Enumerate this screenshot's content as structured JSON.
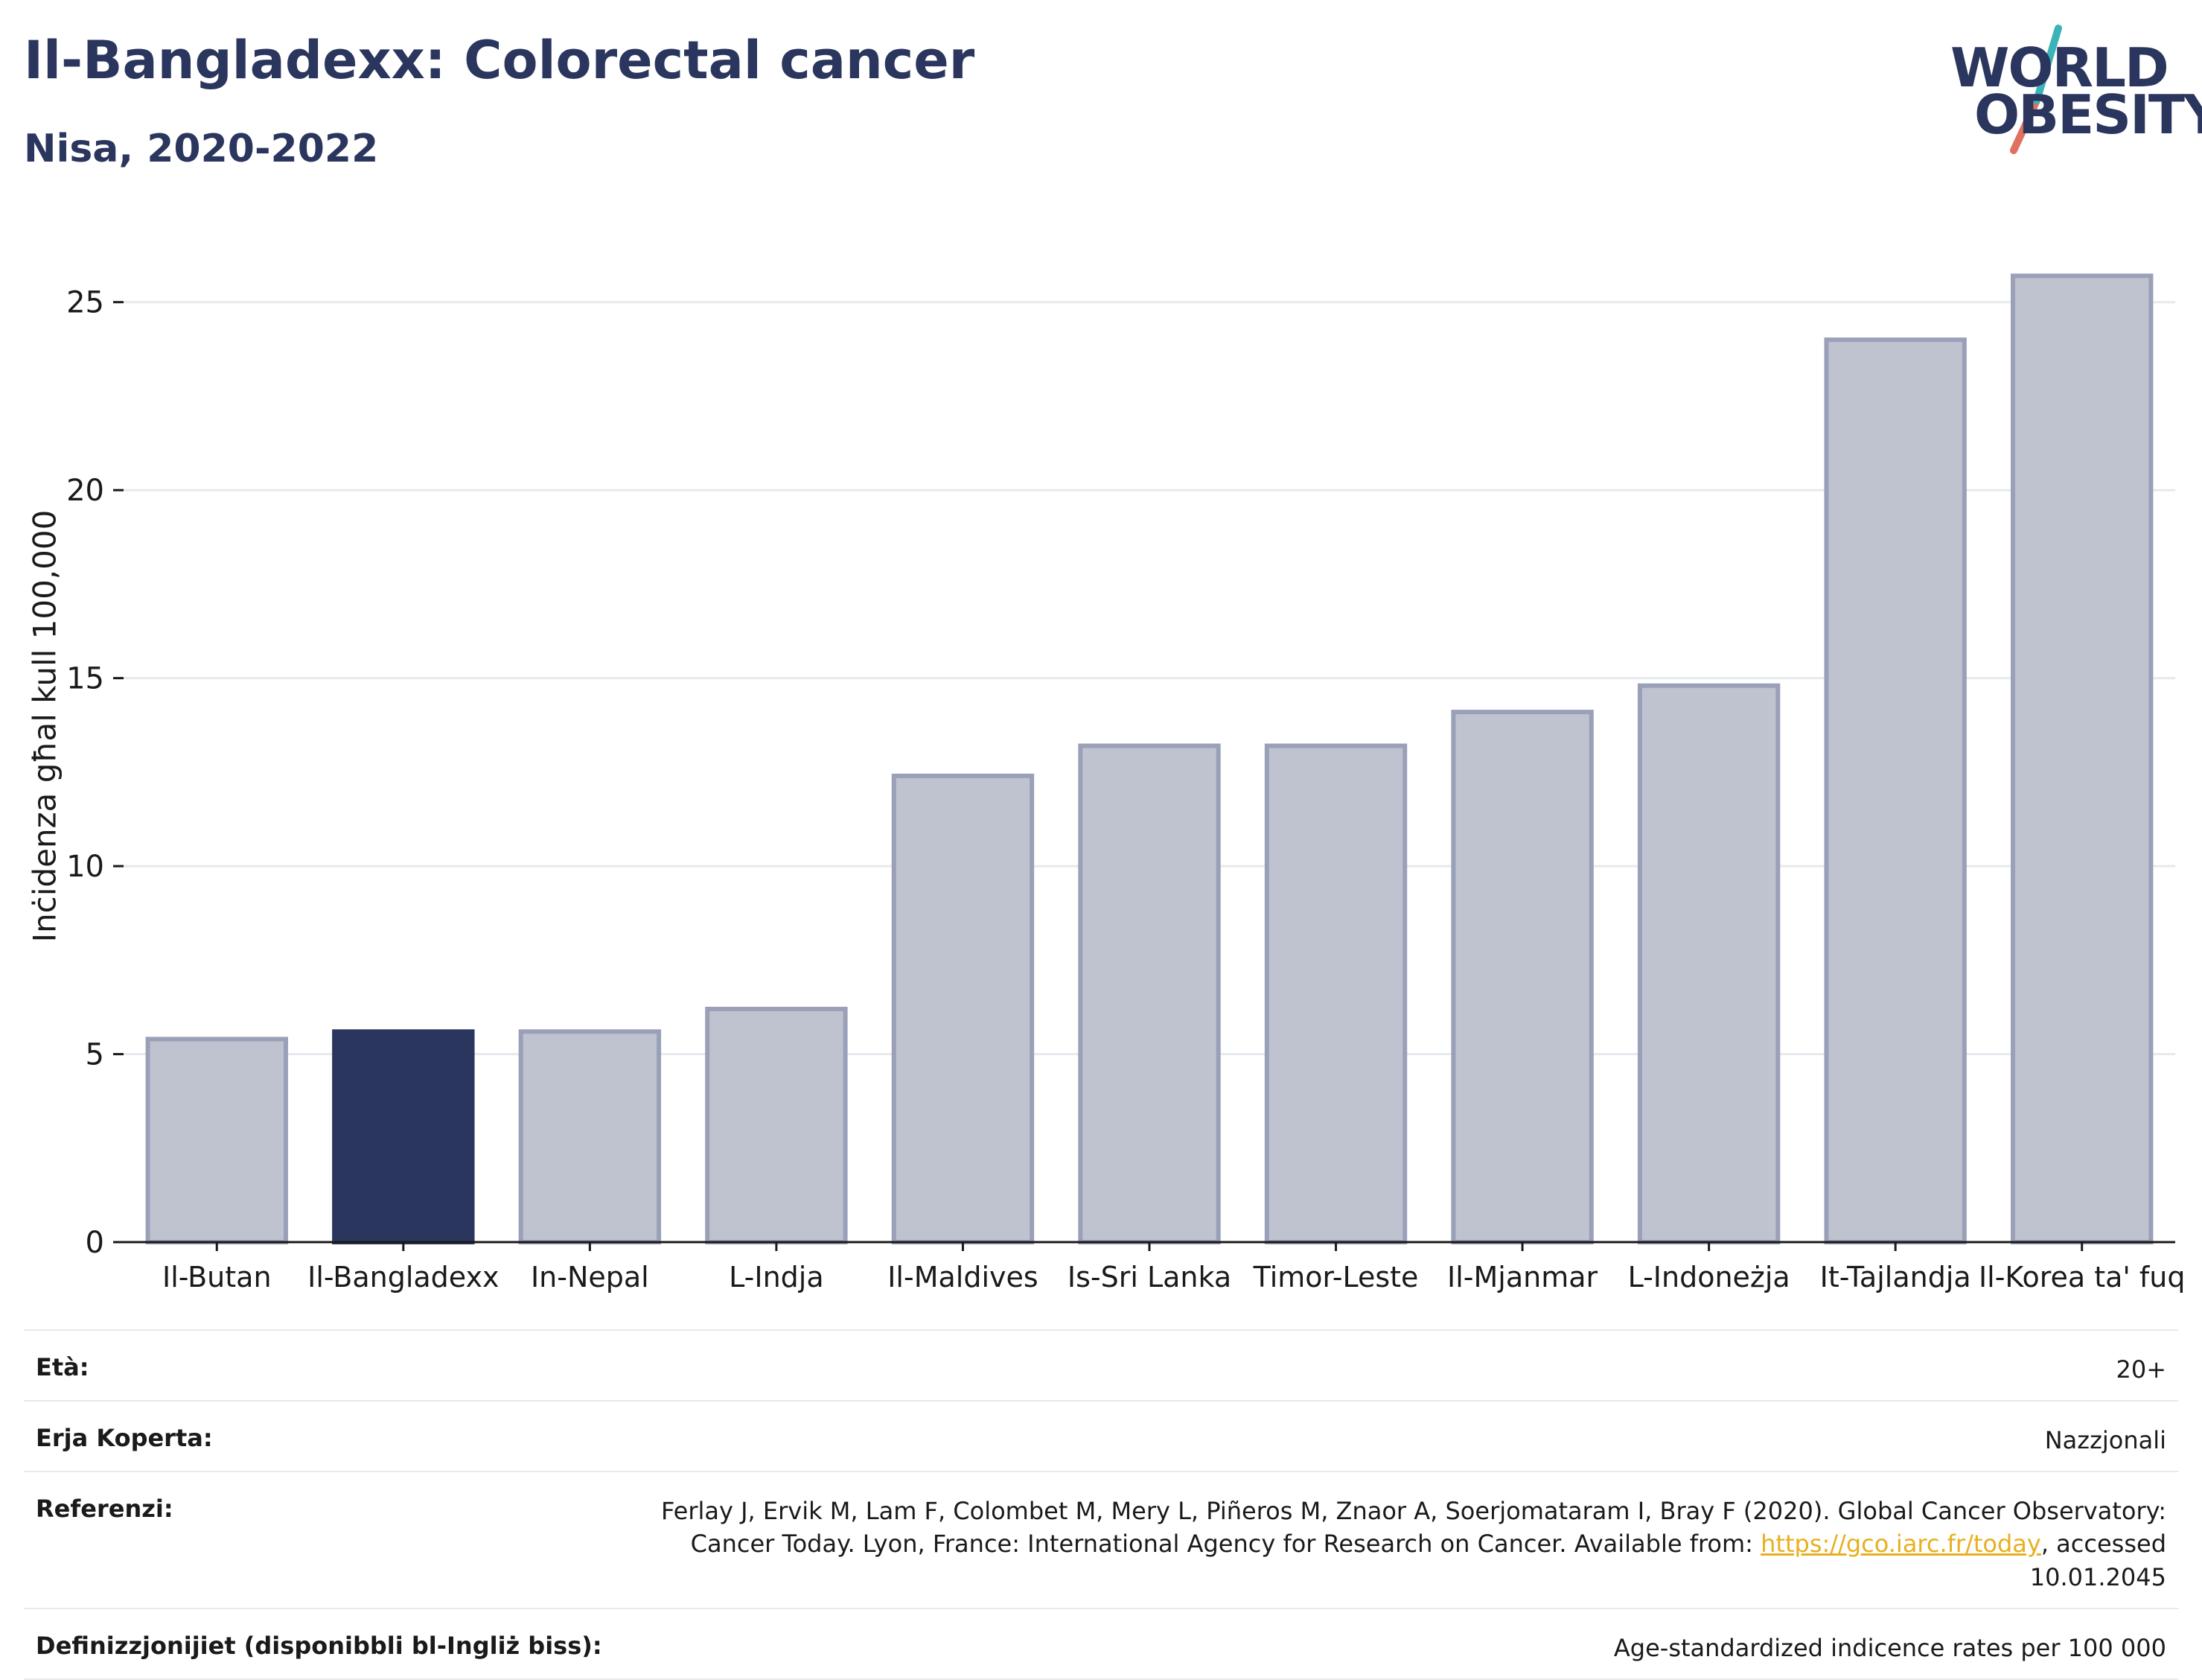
{
  "header": {
    "title": "Il-Bangladexx: Colorectal cancer",
    "subtitle": "Nisa, 2020-2022"
  },
  "logo": {
    "line1": "WORLD",
    "line2": "OBESITY"
  },
  "chart_data": {
    "type": "bar",
    "title": "Il-Bangladexx: Colorectal cancer",
    "subtitle": "Nisa, 2020-2022",
    "categories": [
      "Il-Butan",
      "Il-Bangladexx",
      "In-Nepal",
      "L-Indja",
      "Il-Maldives",
      "Is-Sri Lanka",
      "Timor-Leste",
      "Il-Mjanmar",
      "L-Indoneżja",
      "It-Tajlandja",
      "Il-Korea ta' fuq"
    ],
    "values": [
      5.4,
      5.6,
      5.6,
      6.2,
      12.4,
      13.2,
      13.2,
      14.1,
      14.8,
      24.0,
      25.7
    ],
    "highlight": "Il-Bangladexx",
    "xlabel": "",
    "ylabel": "Inċidenza għal kull 100,000",
    "ylim": [
      0,
      26.5
    ],
    "yticks": [
      0,
      5,
      10,
      15,
      20,
      25
    ],
    "grid": true,
    "colors": {
      "highlight": "#2b365e",
      "default": "#bfc3d0",
      "default_edge": "#9aa0b8"
    }
  },
  "info": {
    "age_label": "Età:",
    "age_value": "20+",
    "area_label": "Erja Koperta:",
    "area_value": "Nazzjonali",
    "ref_label": "Referenzi:",
    "ref_text_before": "Ferlay J, Ervik M, Lam F, Colombet M, Mery L, Piñeros M, Znaor A, Soerjomataram I, Bray F (2020). Global Cancer Observatory: Cancer Today. Lyon, France: International Agency for Research on Cancer. Available from: ",
    "ref_link": "https://gco.iarc.fr/today",
    "ref_text_after": ", accessed 10.01.2045",
    "def_label": "Definizzjonijiet (disponibbli bl-Ingliż biss):",
    "def_value": "Age-standardized indicence rates per 100 000"
  }
}
